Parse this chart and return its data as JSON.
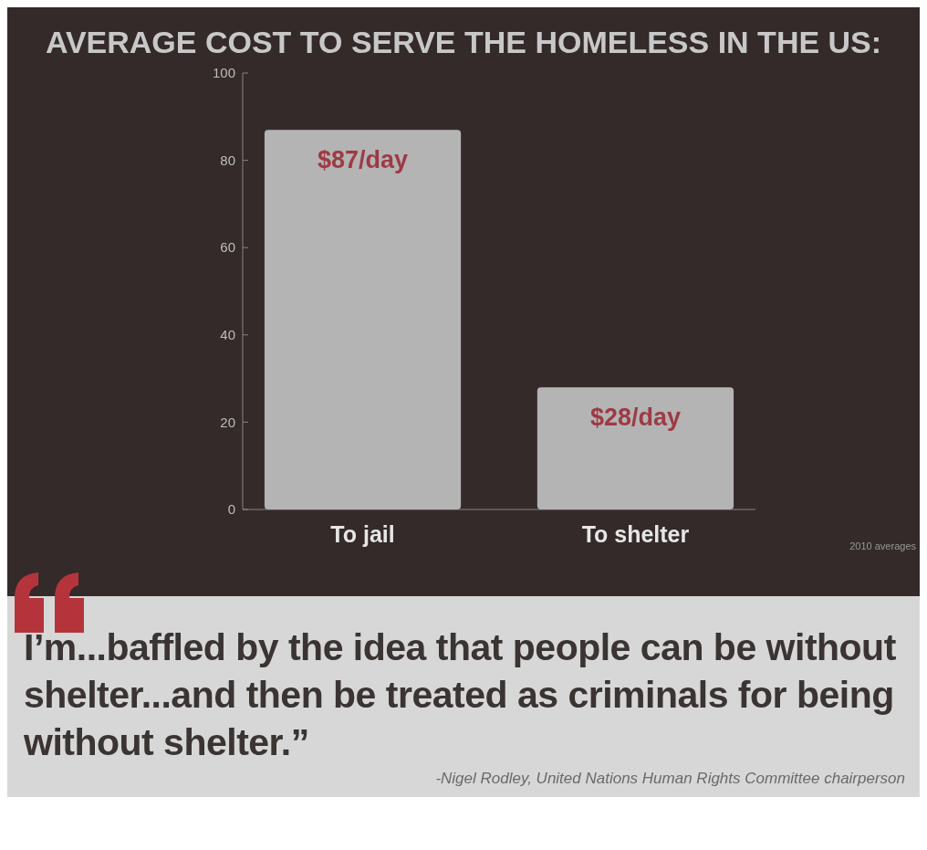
{
  "chart_data": {
    "type": "bar",
    "title": "AVERAGE COST TO SERVE THE HOMELESS IN THE US:",
    "categories": [
      "To jail",
      "To shelter"
    ],
    "values": [
      87,
      28
    ],
    "value_labels": [
      "$87/day",
      "$28/day"
    ],
    "color": "#b4b4b4",
    "ylim": [
      0,
      100
    ],
    "yticks": [
      0,
      20,
      40,
      60,
      80,
      100
    ],
    "grid": false,
    "annotations": [
      "2010 averages",
      "I’m...baffled by the idea that people can be without shelter...and then be treated as criminals for being without shelter.”",
      "-Nigel Rodley, United Nations Human Rights Committee chairperson"
    ]
  }
}
